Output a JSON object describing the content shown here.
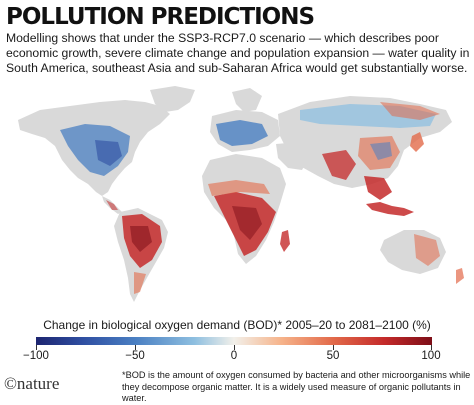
{
  "header": {
    "title": "POLLUTION PREDICTIONS",
    "subtitle": "Modelling shows that under the SSP3-RCP7.0 scenario — which describes poor economic growth, severe climate change and population expansion — water quality in South America, southeast Asia and sub-Saharan Africa would get substantially worse."
  },
  "legend": {
    "title": "Change in biological oxygen demand (BOD)* 2005–20 to 2081–2100 (%)",
    "ticks": [
      "−100",
      "−50",
      "0",
      "50",
      "100"
    ],
    "colors": {
      "low": "#1d2570",
      "mid_low": "#8ebfe0",
      "zero": "#f2f0ea",
      "mid_high": "#e26a4a",
      "high": "#7d0e18",
      "land_no_data": "#d9d9d9"
    }
  },
  "footer": {
    "brand": "©nature",
    "footnote": "*BOD is the amount of oxygen consumed by bacteria and other microorganisms while they decompose organic matter. It is a widely used measure of organic pollutants in water."
  }
}
